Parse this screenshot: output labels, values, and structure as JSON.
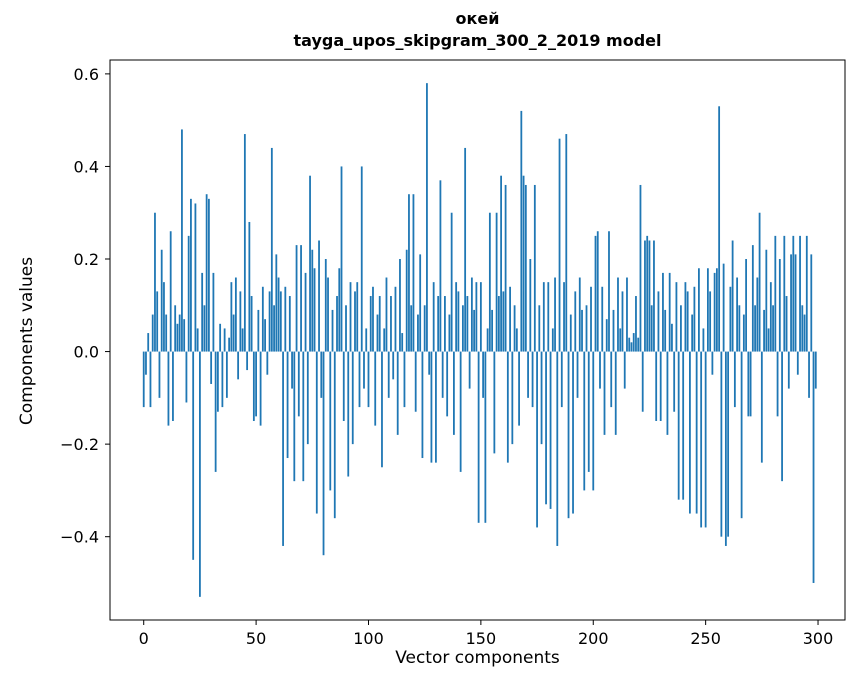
{
  "figure": {
    "title": "окей",
    "subtitle": "tayga_upos_skipgram_300_2_2019 model",
    "background": "#ffffff"
  },
  "chart_data": {
    "type": "bar",
    "title": "окей",
    "subtitle": "tayga_upos_skipgram_300_2_2019 model",
    "xlabel": "Vector components",
    "ylabel": "Components values",
    "bar_color": "#1f77b4",
    "grid": false,
    "legend": null,
    "xlim": [
      -15,
      312
    ],
    "ylim": [
      -0.58,
      0.63
    ],
    "xticks": [
      0,
      50,
      100,
      150,
      200,
      250,
      300
    ],
    "xtick_labels": [
      "0",
      "50",
      "100",
      "150",
      "200",
      "250",
      "300"
    ],
    "yticks": [
      -0.4,
      -0.2,
      0.0,
      0.2,
      0.4,
      0.6
    ],
    "ytick_labels": [
      "−0.4",
      "−0.2",
      "0.0",
      "0.2",
      "0.4",
      "0.6"
    ],
    "x_start": 0,
    "bar_width": 0.8,
    "values": [
      -0.12,
      -0.05,
      0.04,
      -0.12,
      0.08,
      0.3,
      0.13,
      -0.1,
      0.22,
      0.15,
      0.08,
      -0.16,
      0.26,
      -0.15,
      0.1,
      0.06,
      0.08,
      0.48,
      0.07,
      -0.11,
      0.25,
      0.33,
      -0.45,
      0.32,
      0.05,
      -0.53,
      0.17,
      0.1,
      0.34,
      0.33,
      -0.07,
      0.17,
      -0.26,
      -0.13,
      0.06,
      -0.12,
      0.05,
      -0.1,
      0.03,
      0.15,
      0.08,
      0.16,
      -0.06,
      0.13,
      0.05,
      0.47,
      -0.04,
      0.28,
      0.12,
      -0.15,
      -0.14,
      0.09,
      -0.16,
      0.14,
      0.07,
      -0.05,
      0.13,
      0.44,
      0.1,
      0.21,
      0.16,
      0.13,
      -0.42,
      0.14,
      -0.23,
      0.12,
      -0.08,
      -0.28,
      0.23,
      -0.14,
      0.23,
      -0.28,
      0.17,
      -0.2,
      0.38,
      0.22,
      0.18,
      -0.35,
      0.24,
      -0.1,
      -0.44,
      0.2,
      0.16,
      -0.3,
      0.09,
      -0.36,
      0.12,
      0.18,
      0.4,
      -0.15,
      0.1,
      -0.27,
      0.15,
      -0.2,
      0.13,
      0.15,
      -0.12,
      0.4,
      -0.08,
      0.05,
      -0.12,
      0.12,
      0.14,
      -0.16,
      0.08,
      0.12,
      -0.25,
      0.05,
      0.16,
      -0.1,
      0.12,
      -0.06,
      0.14,
      -0.18,
      0.2,
      0.04,
      -0.12,
      0.22,
      0.34,
      0.1,
      0.34,
      -0.13,
      0.08,
      0.21,
      -0.23,
      0.1,
      0.58,
      -0.05,
      -0.24,
      0.15,
      -0.24,
      0.12,
      0.37,
      -0.1,
      0.12,
      -0.14,
      0.08,
      0.3,
      -0.18,
      0.15,
      0.13,
      -0.26,
      0.1,
      0.44,
      0.12,
      -0.08,
      0.16,
      0.09,
      0.15,
      -0.37,
      0.15,
      -0.1,
      -0.37,
      0.05,
      0.3,
      0.09,
      -0.22,
      0.3,
      0.12,
      0.38,
      0.13,
      0.36,
      -0.24,
      0.14,
      -0.2,
      0.1,
      0.05,
      -0.16,
      0.52,
      0.38,
      0.36,
      -0.1,
      0.2,
      -0.12,
      0.36,
      -0.38,
      0.1,
      -0.2,
      0.15,
      -0.33,
      0.15,
      -0.34,
      0.05,
      0.16,
      -0.42,
      0.46,
      -0.12,
      0.15,
      0.47,
      -0.36,
      0.08,
      -0.35,
      0.13,
      -0.1,
      0.16,
      0.09,
      -0.3,
      0.1,
      -0.26,
      0.14,
      -0.3,
      0.25,
      0.26,
      -0.08,
      0.14,
      -0.18,
      0.07,
      0.26,
      -0.12,
      0.09,
      -0.18,
      0.16,
      0.05,
      0.13,
      -0.08,
      0.16,
      0.03,
      0.02,
      0.04,
      0.12,
      0.03,
      0.36,
      -0.13,
      0.24,
      0.25,
      0.24,
      0.1,
      0.24,
      -0.15,
      0.13,
      -0.15,
      0.17,
      0.09,
      -0.18,
      0.17,
      0.06,
      -0.13,
      0.15,
      -0.32,
      0.1,
      -0.32,
      0.15,
      0.13,
      -0.35,
      0.08,
      0.14,
      -0.35,
      0.18,
      -0.38,
      0.05,
      -0.38,
      0.18,
      0.13,
      -0.05,
      0.17,
      0.18,
      0.53,
      -0.4,
      0.19,
      -0.42,
      -0.4,
      0.14,
      0.24,
      -0.12,
      0.16,
      0.1,
      -0.36,
      0.08,
      0.2,
      -0.14,
      -0.14,
      0.23,
      0.1,
      0.16,
      0.3,
      -0.24,
      0.09,
      0.22,
      0.05,
      0.15,
      0.1,
      0.25,
      -0.14,
      0.2,
      -0.28,
      0.25,
      0.12,
      -0.08,
      0.21,
      0.25,
      0.21,
      -0.05,
      0.25,
      0.1,
      0.08,
      0.25,
      -0.1,
      0.21,
      -0.5,
      -0.08
    ]
  }
}
